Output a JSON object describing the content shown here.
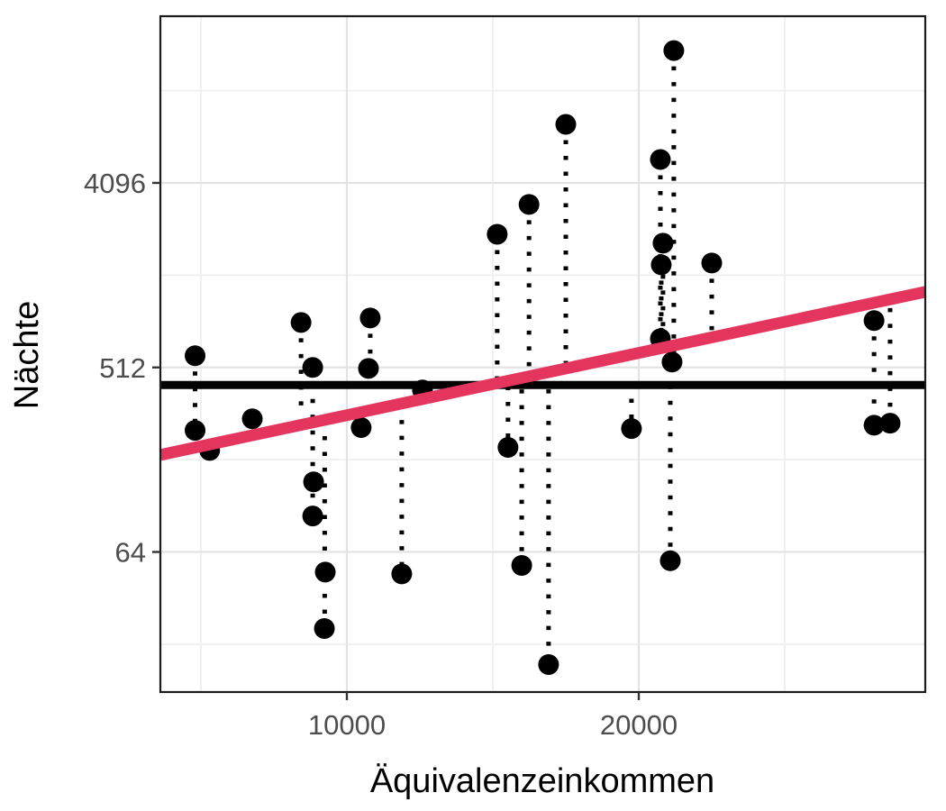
{
  "chart_data": {
    "type": "scatter",
    "title": "",
    "xlabel": "Äquivalenzeinkommen",
    "ylabel": "Nächte",
    "x_scale": "linear",
    "y_scale": "log2",
    "xlim": [
      3611,
      29815
    ],
    "ylim": [
      13.2,
      26800
    ],
    "x_ticks": [
      {
        "value": 10000,
        "label": "10000"
      },
      {
        "value": 20000,
        "label": "20000"
      }
    ],
    "x_minor_breaks": [
      5000,
      15000,
      25000
    ],
    "y_ticks": [
      {
        "value": 4096,
        "label": "4096"
      },
      {
        "value": 512,
        "label": "512"
      },
      {
        "value": 64,
        "label": "64"
      }
    ],
    "y_minor_breaks": [
      11585,
      1448,
      181,
      22.6
    ],
    "grid": true,
    "legend": "none",
    "points": [
      [
        4800,
        584
      ],
      [
        4800,
        252
      ],
      [
        5300,
        201
      ],
      [
        6760,
        287
      ],
      [
        8430,
        850
      ],
      [
        8830,
        512
      ],
      [
        8860,
        141
      ],
      [
        8830,
        96
      ],
      [
        9260,
        51
      ],
      [
        9230,
        27
      ],
      [
        10490,
        260
      ],
      [
        10800,
        894
      ],
      [
        10740,
        506
      ],
      [
        11880,
        50
      ],
      [
        12590,
        397
      ],
      [
        15150,
        2297
      ],
      [
        15520,
        208
      ],
      [
        16240,
        3212
      ],
      [
        15990,
        55
      ],
      [
        16910,
        18
      ],
      [
        17500,
        7920
      ],
      [
        19750,
        257
      ],
      [
        20740,
        5334
      ],
      [
        20740,
        708
      ],
      [
        20830,
        2076
      ],
      [
        20770,
        1627
      ],
      [
        21140,
        544
      ],
      [
        21200,
        18200
      ],
      [
        21080,
        58
      ],
      [
        22500,
        1661
      ],
      [
        28060,
        868
      ],
      [
        28060,
        267
      ],
      [
        28610,
        273
      ]
    ],
    "residual_segments": [
      [
        4800,
        584,
        252
      ],
      [
        8430,
        850,
        300
      ],
      [
        8830,
        512,
        96
      ],
      [
        9240,
        282,
        27
      ],
      [
        10800,
        894,
        506
      ],
      [
        11880,
        338,
        50
      ],
      [
        15150,
        2297,
        420
      ],
      [
        15520,
        415,
        208
      ],
      [
        16240,
        3212,
        415
      ],
      [
        15990,
        400,
        55
      ],
      [
        16910,
        400,
        18
      ],
      [
        17500,
        7920,
        540
      ],
      [
        19750,
        430,
        257
      ],
      [
        20740,
        5334,
        708
      ],
      [
        20830,
        2076,
        650
      ],
      [
        20770,
        1627,
        690
      ],
      [
        21200,
        18200,
        544
      ],
      [
        21080,
        420,
        58
      ],
      [
        22500,
        1661,
        720
      ],
      [
        28060,
        868,
        267
      ],
      [
        28610,
        1000,
        273
      ]
    ],
    "null_model_line": {
      "y": 420
    },
    "regression_line": {
      "x1": 3611,
      "y1": 191,
      "x2": 29815,
      "y2": 1200
    }
  },
  "colors": {
    "point": "#000000",
    "segment": "#000000",
    "null_line": "#000000",
    "regression_line": "#E4355E",
    "grid_major": "#e3e3e3",
    "grid_minor": "#efefef",
    "panel_border": "#1a1a1a",
    "tick_mark": "#333333",
    "tick_label": "#4d4d4d",
    "background": "#ffffff"
  }
}
